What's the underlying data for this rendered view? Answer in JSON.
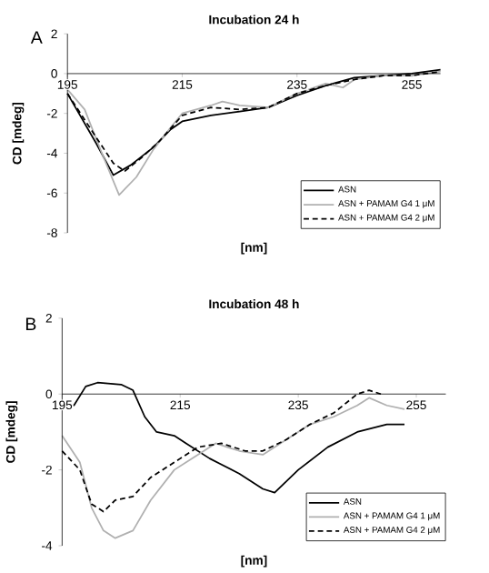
{
  "chart_data": [
    {
      "type": "line",
      "title": "Incubation 24 h",
      "xlabel": "[nm]",
      "ylabel": "CD [mdeg]",
      "annotations": [
        "A"
      ],
      "xlim": [
        195,
        260
      ],
      "ylim": [
        -8,
        2
      ],
      "xticks": [
        195,
        215,
        235,
        255
      ],
      "yticks": [
        -8,
        -6,
        -4,
        -2,
        0,
        2
      ],
      "legend": "bottom right",
      "series": [
        {
          "name": "ASN",
          "color": "#000000",
          "line_style": "solid",
          "x": [
            195,
            200,
            203,
            206,
            210,
            213,
            215,
            220,
            225,
            230,
            235,
            240,
            245,
            250,
            255,
            260
          ],
          "values": [
            -1.0,
            -3.5,
            -5.1,
            -4.6,
            -3.7,
            -2.8,
            -2.4,
            -2.1,
            -1.9,
            -1.7,
            -1.1,
            -0.6,
            -0.2,
            -0.1,
            0.0,
            0.2
          ]
        },
        {
          "name": "ASN + PAMAM G4 1 μM",
          "color": "#b0b0b0",
          "line_style": "solid",
          "x": [
            195,
            198,
            201,
            204,
            207,
            210,
            213,
            215,
            220,
            222,
            225,
            230,
            235,
            240,
            243,
            245,
            250,
            255,
            260
          ],
          "values": [
            -0.8,
            -1.8,
            -4.0,
            -6.1,
            -5.2,
            -3.8,
            -2.7,
            -2.0,
            -1.6,
            -1.4,
            -1.6,
            -1.7,
            -1.0,
            -0.5,
            -0.7,
            -0.3,
            -0.1,
            -0.1,
            0.1
          ]
        },
        {
          "name": "ASN + PAMAM G4 2 μM",
          "color": "#000000",
          "line_style": "dashed",
          "x": [
            195,
            200,
            203,
            205,
            208,
            211,
            215,
            220,
            225,
            230,
            235,
            240,
            245,
            250,
            255,
            260
          ],
          "values": [
            -1.0,
            -3.2,
            -4.5,
            -4.9,
            -4.2,
            -3.4,
            -2.1,
            -1.7,
            -1.8,
            -1.7,
            -1.0,
            -0.6,
            -0.3,
            -0.1,
            -0.1,
            0.1
          ]
        }
      ]
    },
    {
      "type": "line",
      "title": "Incubation 48 h",
      "xlabel": "[nm]",
      "ylabel": "CD [mdeg]",
      "annotations": [
        "B"
      ],
      "xlim": [
        195,
        260
      ],
      "ylim": [
        -4,
        2
      ],
      "xticks": [
        195,
        215,
        235,
        255
      ],
      "yticks": [
        -4,
        -2,
        0,
        2
      ],
      "legend": "bottom right",
      "series": [
        {
          "name": "ASN",
          "color": "#000000",
          "line_style": "solid",
          "x": [
            195,
            197,
            199,
            201,
            205,
            207,
            209,
            211,
            214,
            216,
            220,
            225,
            229,
            231,
            235,
            240,
            245,
            250,
            253
          ],
          "values": [
            -0.3,
            -0.3,
            0.2,
            0.3,
            0.25,
            0.1,
            -0.6,
            -1.0,
            -1.1,
            -1.3,
            -1.7,
            -2.1,
            -2.5,
            -2.6,
            -2.0,
            -1.4,
            -1.0,
            -0.8,
            -0.8
          ]
        },
        {
          "name": "ASN + PAMAM G4 1 μM",
          "color": "#b0b0b0",
          "line_style": "solid",
          "x": [
            195,
            198,
            200,
            202,
            204,
            207,
            210,
            214,
            218,
            221,
            225,
            229,
            233,
            237,
            241,
            245,
            247,
            250,
            253
          ],
          "values": [
            -1.1,
            -1.8,
            -3.0,
            -3.6,
            -3.8,
            -3.6,
            -2.8,
            -2.0,
            -1.6,
            -1.3,
            -1.5,
            -1.6,
            -1.2,
            -0.8,
            -0.6,
            -0.3,
            -0.1,
            -0.3,
            -0.4
          ]
        },
        {
          "name": "ASN + PAMAM G4 2 μM",
          "color": "#000000",
          "line_style": "dashed",
          "x": [
            195,
            198,
            200,
            202,
            204,
            207,
            210,
            215,
            218,
            222,
            226,
            229,
            233,
            237,
            241,
            245,
            247,
            249
          ],
          "values": [
            -1.5,
            -2.0,
            -2.9,
            -3.1,
            -2.8,
            -2.7,
            -2.2,
            -1.7,
            -1.4,
            -1.3,
            -1.5,
            -1.5,
            -1.2,
            -0.8,
            -0.5,
            0.0,
            0.1,
            0.0
          ]
        }
      ]
    }
  ]
}
